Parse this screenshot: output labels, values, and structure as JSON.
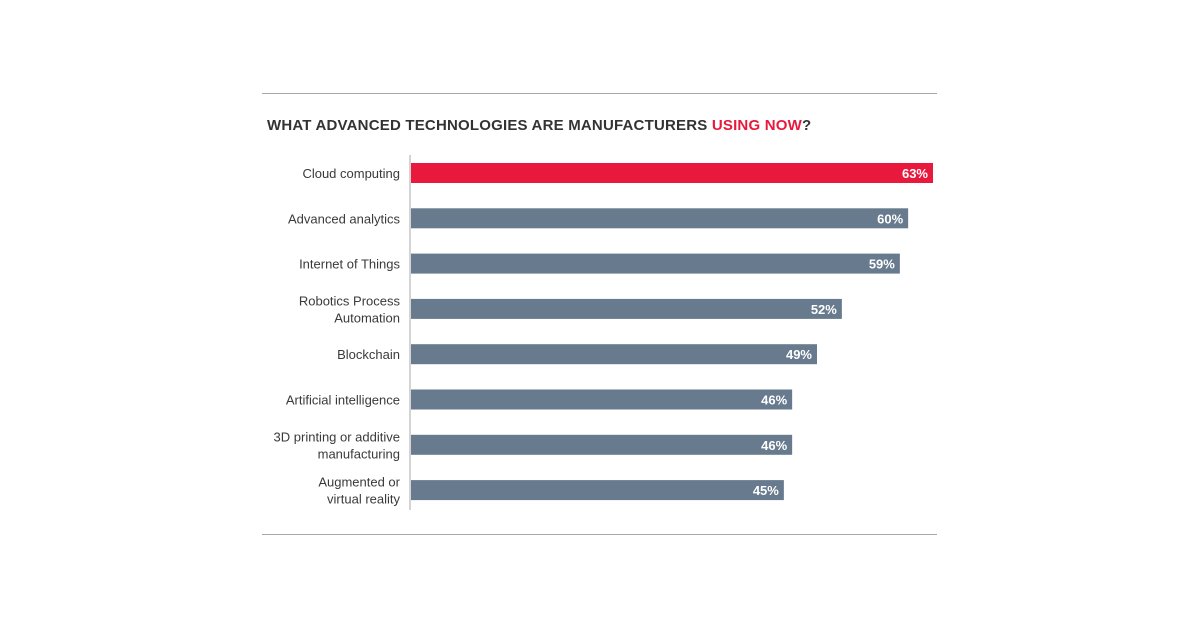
{
  "header": {
    "title_part1": "WHAT ADVANCED TECHNOLOGIES ARE MANUFACTURERS ",
    "title_accent": "USING NOW",
    "title_part2": "?"
  },
  "colors": {
    "highlight": "#e8193c",
    "bar": "#677a8e",
    "title": "#333333",
    "rule": "#a8a8a8"
  },
  "chart_data": {
    "type": "bar",
    "orientation": "horizontal",
    "title": "WHAT ADVANCED TECHNOLOGIES ARE MANUFACTURERS USING NOW?",
    "categories": [
      [
        "Cloud computing"
      ],
      [
        "Advanced analytics"
      ],
      [
        "Internet of Things"
      ],
      [
        "Robotics Process",
        "Automation"
      ],
      [
        "Blockchain"
      ],
      [
        "Artificial intelligence"
      ],
      [
        "3D printing or additive",
        "manufacturing"
      ],
      [
        "Augmented or",
        "virtual reality"
      ]
    ],
    "values": [
      63,
      60,
      59,
      52,
      49,
      46,
      46,
      45
    ],
    "value_labels": [
      "63%",
      "60%",
      "59%",
      "52%",
      "49%",
      "46%",
      "46%",
      "45%"
    ],
    "highlight_index": 0,
    "xlim": [
      0,
      63
    ],
    "grid": false,
    "legend": "none"
  }
}
